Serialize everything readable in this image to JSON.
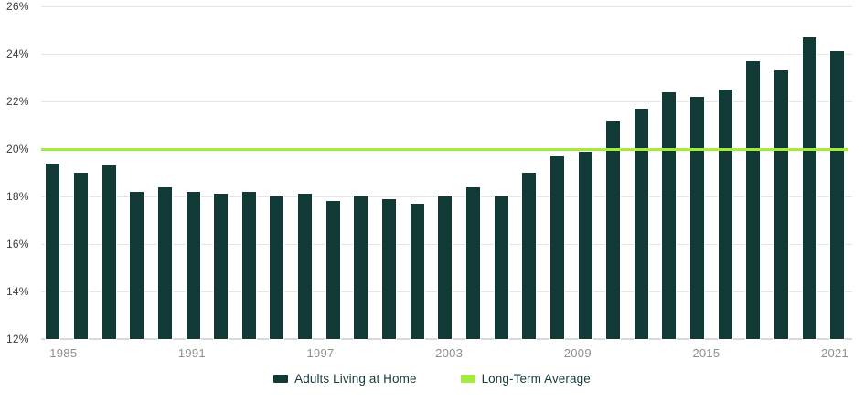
{
  "chart_data": {
    "type": "bar",
    "title": "",
    "x_tick_labels": [
      "1985",
      "1991",
      "1997",
      "2003",
      "2009",
      "2015",
      "2021"
    ],
    "y_tick_labels": [
      "26%",
      "24%",
      "22%",
      "20%",
      "18%",
      "16%",
      "14%",
      "12%"
    ],
    "y_tick_values": [
      26,
      24,
      22,
      20,
      18,
      16,
      14,
      12
    ],
    "gridline_values": [
      26,
      24,
      22,
      18,
      16,
      14
    ],
    "ylim": [
      12,
      26
    ],
    "y_unit": "%",
    "grid": "horizontal",
    "legend_position": "bottom",
    "series": [
      {
        "name": "Adults Living at Home",
        "type": "bar",
        "color": "#113936",
        "values": [
          19.4,
          19.0,
          19.3,
          18.2,
          18.4,
          18.2,
          18.1,
          18.2,
          18.0,
          18.1,
          17.8,
          18.0,
          17.9,
          17.7,
          18.0,
          18.4,
          18.0,
          19.0,
          19.7,
          19.9,
          21.2,
          21.7,
          22.4,
          22.2,
          22.5,
          23.7,
          23.3,
          24.7,
          24.1
        ]
      },
      {
        "name": "Long-Term Average",
        "type": "reference_line",
        "color": "#A4EB3F",
        "value": 20
      }
    ],
    "colors": {
      "bar": "#113936",
      "reference_line": "#A4EB3F",
      "gridline": "#E4E4E4",
      "axis_baseline": "#D8D8D8",
      "y_label_text": "#3D3D3D",
      "x_label_text": "#8F8F8F",
      "legend_text": "#17393B"
    }
  }
}
